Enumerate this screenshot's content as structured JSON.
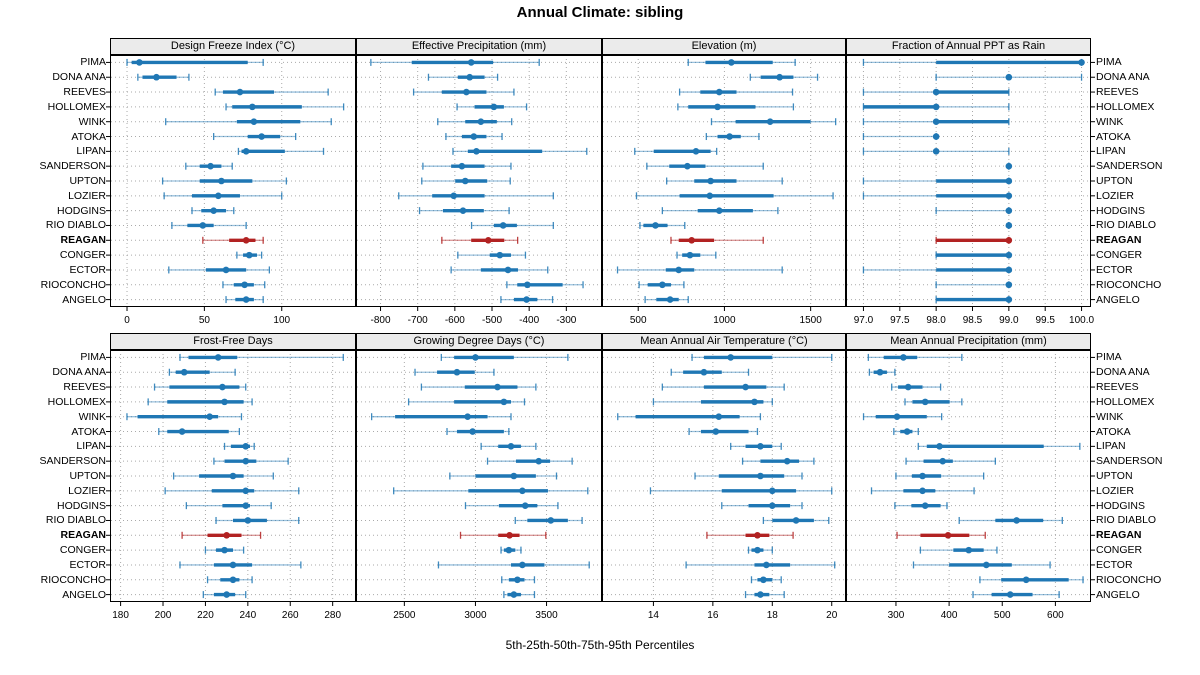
{
  "title": "Annual Climate: sibling",
  "caption": "5th-25th-50th-75th-95th Percentiles",
  "sites": [
    "PIMA",
    "DONA ANA",
    "REEVES",
    "HOLLOMEX",
    "WINK",
    "ATOKA",
    "LIPAN",
    "SANDERSON",
    "UPTON",
    "LOZIER",
    "HODGINS",
    "RIO DIABLO",
    "REAGAN",
    "CONGER",
    "ECTOR",
    "RIOCONCHO",
    "ANGELO"
  ],
  "highlight_site": "REAGAN",
  "colors": {
    "series": "#1f77b4",
    "highlight": "#b22222",
    "grid": "#aaaaaa",
    "header_bg": "#ebebeb",
    "border": "#000000"
  },
  "chart_data": {
    "type": "percentile-dotplot",
    "layout": "2 rows x 4 columns, shared site rows",
    "percentiles": [
      5,
      25,
      50,
      75,
      95
    ],
    "rows": [
      "PIMA",
      "DONA ANA",
      "REEVES",
      "HOLLOMEX",
      "WINK",
      "ATOKA",
      "LIPAN",
      "SANDERSON",
      "UPTON",
      "LOZIER",
      "HODGINS",
      "RIO DIABLO",
      "REAGAN",
      "CONGER",
      "ECTOR",
      "RIOCONCHO",
      "ANGELO"
    ],
    "panels": [
      {
        "title": "Design Freeze Index (°C)",
        "xlim": [
          -11,
          148
        ],
        "ticks": [
          0,
          50,
          100
        ],
        "tick_labels": [
          "0",
          "50",
          "100"
        ],
        "values": [
          [
            0,
            3,
            8,
            78,
            88
          ],
          [
            7,
            10,
            19,
            32,
            40
          ],
          [
            57,
            62,
            73,
            95,
            130
          ],
          [
            64,
            68,
            81,
            113,
            140
          ],
          [
            25,
            71,
            82,
            112,
            132
          ],
          [
            56,
            78,
            87,
            99,
            109
          ],
          [
            72,
            74,
            77,
            102,
            127
          ],
          [
            38,
            47,
            54,
            61,
            68
          ],
          [
            23,
            47,
            61,
            81,
            103
          ],
          [
            24,
            42,
            59,
            73,
            100
          ],
          [
            42,
            48,
            56,
            64,
            69
          ],
          [
            29,
            39,
            49,
            56,
            77
          ],
          [
            49,
            66,
            77,
            83,
            88
          ],
          [
            71,
            75,
            79,
            84,
            87
          ],
          [
            27,
            51,
            64,
            77,
            92
          ],
          [
            62,
            69,
            76,
            82,
            89
          ],
          [
            64,
            70,
            77,
            82,
            88
          ]
        ]
      },
      {
        "title": "Effective Precipitation (mm)",
        "xlim": [
          -866,
          -204
        ],
        "ticks": [
          -800,
          -700,
          -600,
          -500,
          -400,
          -300
        ],
        "tick_labels": [
          "-800",
          "-700",
          "-600",
          "-500",
          "-400",
          "-300"
        ],
        "values": [
          [
            -826,
            -716,
            -556,
            -497,
            -373
          ],
          [
            -671,
            -592,
            -560,
            -520,
            -485
          ],
          [
            -711,
            -635,
            -569,
            -515,
            -441
          ],
          [
            -594,
            -547,
            -495,
            -468,
            -407
          ],
          [
            -646,
            -572,
            -530,
            -487,
            -447
          ],
          [
            -624,
            -581,
            -549,
            -515,
            -473
          ],
          [
            -605,
            -565,
            -542,
            -365,
            -245
          ],
          [
            -686,
            -610,
            -581,
            -520,
            -449
          ],
          [
            -689,
            -599,
            -572,
            -513,
            -451
          ],
          [
            -751,
            -661,
            -603,
            -520,
            -335
          ],
          [
            -695,
            -632,
            -578,
            -522,
            -454
          ],
          [
            -555,
            -495,
            -470,
            -433,
            -335
          ],
          [
            -635,
            -556,
            -510,
            -467,
            -431
          ],
          [
            -592,
            -506,
            -479,
            -449,
            -410
          ],
          [
            -610,
            -530,
            -457,
            -430,
            -350
          ],
          [
            -460,
            -432,
            -405,
            -310,
            -255
          ],
          [
            -476,
            -441,
            -407,
            -378,
            -337
          ]
        ]
      },
      {
        "title": "Elevation (m)",
        "xlim": [
          290,
          1705
        ],
        "ticks": [
          500,
          1000,
          1500
        ],
        "tick_labels": [
          "500",
          "1000",
          "1500"
        ],
        "values": [
          [
            790,
            890,
            1040,
            1280,
            1410
          ],
          [
            1150,
            1210,
            1320,
            1400,
            1540
          ],
          [
            740,
            860,
            970,
            1070,
            1395
          ],
          [
            730,
            790,
            960,
            1180,
            1400
          ],
          [
            925,
            1065,
            1265,
            1500,
            1645
          ],
          [
            895,
            960,
            1030,
            1095,
            1200
          ],
          [
            480,
            590,
            835,
            920,
            955
          ],
          [
            550,
            680,
            785,
            890,
            1225
          ],
          [
            665,
            825,
            920,
            1070,
            1335
          ],
          [
            490,
            740,
            915,
            1285,
            1630
          ],
          [
            640,
            845,
            970,
            1165,
            1310
          ],
          [
            510,
            530,
            600,
            670,
            770
          ],
          [
            690,
            735,
            810,
            940,
            1225
          ],
          [
            725,
            755,
            800,
            860,
            950
          ],
          [
            380,
            660,
            735,
            825,
            1335
          ],
          [
            505,
            555,
            640,
            690,
            765
          ],
          [
            540,
            605,
            685,
            735,
            790
          ]
        ]
      },
      {
        "title": "Fraction of Annual PPT as Rain",
        "xlim": [
          96.76,
          100.13
        ],
        "ticks": [
          97.0,
          97.5,
          98.0,
          98.5,
          99.0,
          99.5,
          100.0
        ],
        "tick_labels": [
          "97.0",
          "97.5",
          "98.0",
          "98.5",
          "99.0",
          "99.5",
          "100.0"
        ],
        "values": [
          [
            97,
            98,
            100,
            100,
            100
          ],
          [
            98,
            99,
            99,
            99,
            100
          ],
          [
            97,
            98,
            98,
            99,
            99
          ],
          [
            97,
            97,
            98,
            98,
            99
          ],
          [
            97,
            98,
            98,
            99,
            99
          ],
          [
            97,
            98,
            98,
            98,
            98
          ],
          [
            97,
            98,
            98,
            98,
            99
          ],
          [
            99,
            99,
            99,
            99,
            99
          ],
          [
            97,
            98,
            99,
            99,
            99
          ],
          [
            97,
            98,
            99,
            99,
            99
          ],
          [
            98,
            99,
            99,
            99,
            99
          ],
          [
            99,
            99,
            99,
            99,
            99
          ],
          [
            98,
            98,
            99,
            99,
            99
          ],
          [
            98,
            98,
            99,
            99,
            99
          ],
          [
            97,
            98,
            99,
            99,
            99
          ],
          [
            98,
            99,
            99,
            99,
            99
          ],
          [
            98,
            98,
            99,
            99,
            99
          ]
        ]
      },
      {
        "title": "Frost-Free Days",
        "xlim": [
          175,
          291
        ],
        "ticks": [
          180,
          200,
          220,
          240,
          260,
          280
        ],
        "tick_labels": [
          "180",
          "200",
          "220",
          "240",
          "260",
          "280"
        ],
        "values": [
          [
            208,
            212,
            226,
            235,
            285
          ],
          [
            203,
            206,
            210,
            222,
            234
          ],
          [
            196,
            203,
            228,
            236,
            239
          ],
          [
            193,
            202,
            229,
            238,
            242
          ],
          [
            183,
            188,
            222,
            226,
            237
          ],
          [
            198,
            202,
            209,
            231,
            236
          ],
          [
            229,
            232,
            239,
            241,
            243
          ],
          [
            224,
            229,
            239,
            244,
            259
          ],
          [
            205,
            217,
            233,
            238,
            252
          ],
          [
            201,
            223,
            239,
            243,
            264
          ],
          [
            211,
            228,
            239,
            241,
            251
          ],
          [
            225,
            233,
            240,
            249,
            264
          ],
          [
            209,
            221,
            230,
            237,
            246
          ],
          [
            220,
            225,
            229,
            233,
            238
          ],
          [
            208,
            224,
            233,
            242,
            265
          ],
          [
            221,
            227,
            233,
            236,
            242
          ],
          [
            219,
            224,
            230,
            234,
            239
          ]
        ]
      },
      {
        "title": "Growing Degree Days (°C)",
        "xlim": [
          2160,
          3890
        ],
        "ticks": [
          2500,
          3000,
          3500
        ],
        "tick_labels": [
          "2500",
          "3000",
          "3500"
        ],
        "values": [
          [
            2760,
            2850,
            3000,
            3270,
            3650
          ],
          [
            2575,
            2730,
            2870,
            2995,
            3130
          ],
          [
            2620,
            2925,
            3155,
            3295,
            3425
          ],
          [
            2530,
            2850,
            3200,
            3250,
            3345
          ],
          [
            2270,
            2435,
            2945,
            3085,
            3250
          ],
          [
            2800,
            2870,
            2980,
            3200,
            3235
          ],
          [
            3040,
            3160,
            3250,
            3320,
            3425
          ],
          [
            3085,
            3285,
            3445,
            3525,
            3680
          ],
          [
            2820,
            3000,
            3270,
            3425,
            3570
          ],
          [
            2425,
            2950,
            3330,
            3510,
            3790
          ],
          [
            2930,
            3165,
            3350,
            3435,
            3580
          ],
          [
            3280,
            3365,
            3530,
            3650,
            3750
          ],
          [
            2895,
            3160,
            3240,
            3310,
            3495
          ],
          [
            3180,
            3200,
            3235,
            3280,
            3320
          ],
          [
            2740,
            3250,
            3330,
            3485,
            3800
          ],
          [
            3185,
            3235,
            3295,
            3345,
            3415
          ],
          [
            3200,
            3225,
            3270,
            3320,
            3415
          ]
        ]
      },
      {
        "title": "Mean Annual Air Temperature (°C)",
        "xlim": [
          12.27,
          20.48
        ],
        "ticks": [
          14,
          16,
          18,
          20
        ],
        "tick_labels": [
          "14",
          "16",
          "18",
          "20"
        ],
        "values": [
          [
            15.3,
            15.7,
            16.6,
            18.0,
            20.0
          ],
          [
            14.6,
            15.0,
            15.7,
            16.3,
            17.2
          ],
          [
            14.3,
            15.7,
            17.1,
            17.8,
            18.4
          ],
          [
            14.0,
            15.6,
            17.4,
            17.7,
            18.0
          ],
          [
            12.8,
            13.4,
            16.2,
            16.9,
            17.6
          ],
          [
            15.2,
            15.6,
            16.1,
            17.2,
            17.5
          ],
          [
            16.6,
            17.1,
            17.6,
            18.0,
            18.3
          ],
          [
            17.0,
            17.6,
            18.5,
            18.9,
            19.4
          ],
          [
            15.4,
            16.2,
            17.6,
            18.4,
            19.0
          ],
          [
            13.9,
            16.3,
            18.0,
            18.8,
            20.0
          ],
          [
            16.3,
            17.2,
            18.0,
            18.6,
            19.0
          ],
          [
            17.7,
            18.0,
            18.8,
            19.4,
            19.9
          ],
          [
            15.8,
            17.1,
            17.5,
            17.9,
            18.7
          ],
          [
            17.2,
            17.3,
            17.5,
            17.7,
            18.0
          ],
          [
            15.1,
            17.4,
            17.8,
            18.6,
            20.1
          ],
          [
            17.3,
            17.5,
            17.7,
            18.0,
            18.3
          ],
          [
            17.1,
            17.4,
            17.6,
            17.9,
            18.4
          ]
        ]
      },
      {
        "title": "Mean Annual Precipitation (mm)",
        "xlim": [
          206,
          667
        ],
        "ticks": [
          300,
          400,
          500,
          600
        ],
        "tick_labels": [
          "300",
          "400",
          "500",
          "600"
        ],
        "values": [
          [
            248,
            277,
            314,
            340,
            424
          ],
          [
            250,
            258,
            270,
            283,
            298
          ],
          [
            292,
            304,
            323,
            350,
            384
          ],
          [
            317,
            331,
            355,
            401,
            424
          ],
          [
            239,
            262,
            302,
            358,
            386
          ],
          [
            296,
            308,
            321,
            331,
            342
          ],
          [
            342,
            358,
            382,
            578,
            646
          ],
          [
            319,
            352,
            388,
            407,
            487
          ],
          [
            300,
            330,
            350,
            385,
            465
          ],
          [
            254,
            314,
            350,
            374,
            447
          ],
          [
            298,
            329,
            355,
            384,
            396
          ],
          [
            419,
            487,
            527,
            577,
            613
          ],
          [
            302,
            346,
            398,
            438,
            468
          ],
          [
            346,
            408,
            437,
            465,
            490
          ],
          [
            333,
            400,
            470,
            518,
            590
          ],
          [
            458,
            498,
            545,
            625,
            652
          ],
          [
            445,
            480,
            515,
            557,
            607
          ]
        ]
      }
    ]
  }
}
